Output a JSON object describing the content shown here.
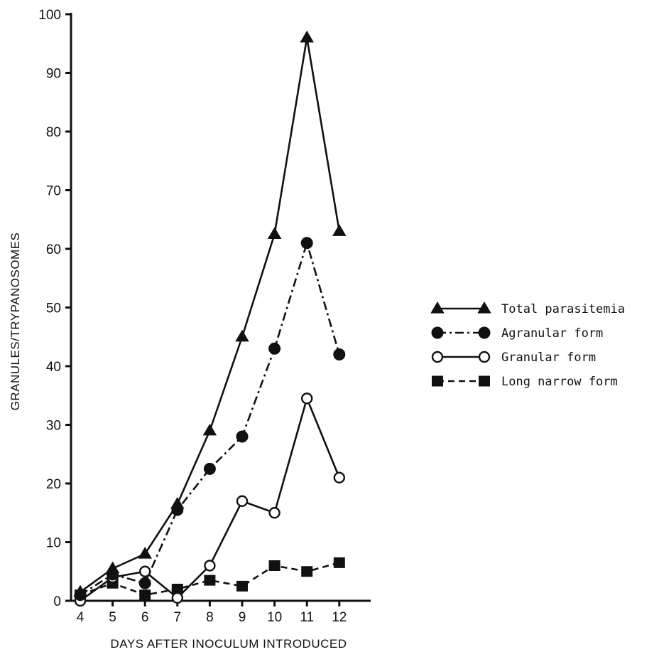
{
  "chart_data": {
    "type": "line",
    "title": "",
    "xlabel": "DAYS AFTER INOCULUM INTRODUCED",
    "ylabel": "GRANULES/TRYPANOSOMES",
    "x": [
      4,
      5,
      6,
      7,
      8,
      9,
      10,
      11,
      12
    ],
    "xticks": [
      "4",
      "5",
      "6",
      "7",
      "8",
      "9",
      "10",
      "11",
      "12"
    ],
    "yticks": [
      "0",
      "10",
      "20",
      "30",
      "40",
      "50",
      "60",
      "70",
      "80",
      "90",
      "100"
    ],
    "ylim": [
      0,
      100
    ],
    "grid": false,
    "legend_position": "right",
    "series": [
      {
        "name": "Total parasitemia",
        "marker": "filled-triangle",
        "line_style": "solid",
        "values": [
          1.5,
          5.5,
          8,
          16.5,
          29,
          45,
          62.5,
          96,
          63
        ]
      },
      {
        "name": "Agranular form",
        "marker": "filled-circle",
        "line_style": "dash-dot",
        "values": [
          1,
          4.5,
          3,
          15.5,
          22.5,
          28,
          43,
          61,
          42
        ]
      },
      {
        "name": "Granular form",
        "marker": "open-circle",
        "line_style": "solid",
        "values": [
          0,
          4,
          5,
          0.5,
          6,
          17,
          15,
          34.5,
          21
        ]
      },
      {
        "name": "Long narrow form",
        "marker": "filled-square",
        "line_style": "dashed",
        "values": [
          1,
          3,
          1,
          2,
          3.5,
          2.5,
          6,
          5,
          6.5
        ]
      }
    ]
  }
}
